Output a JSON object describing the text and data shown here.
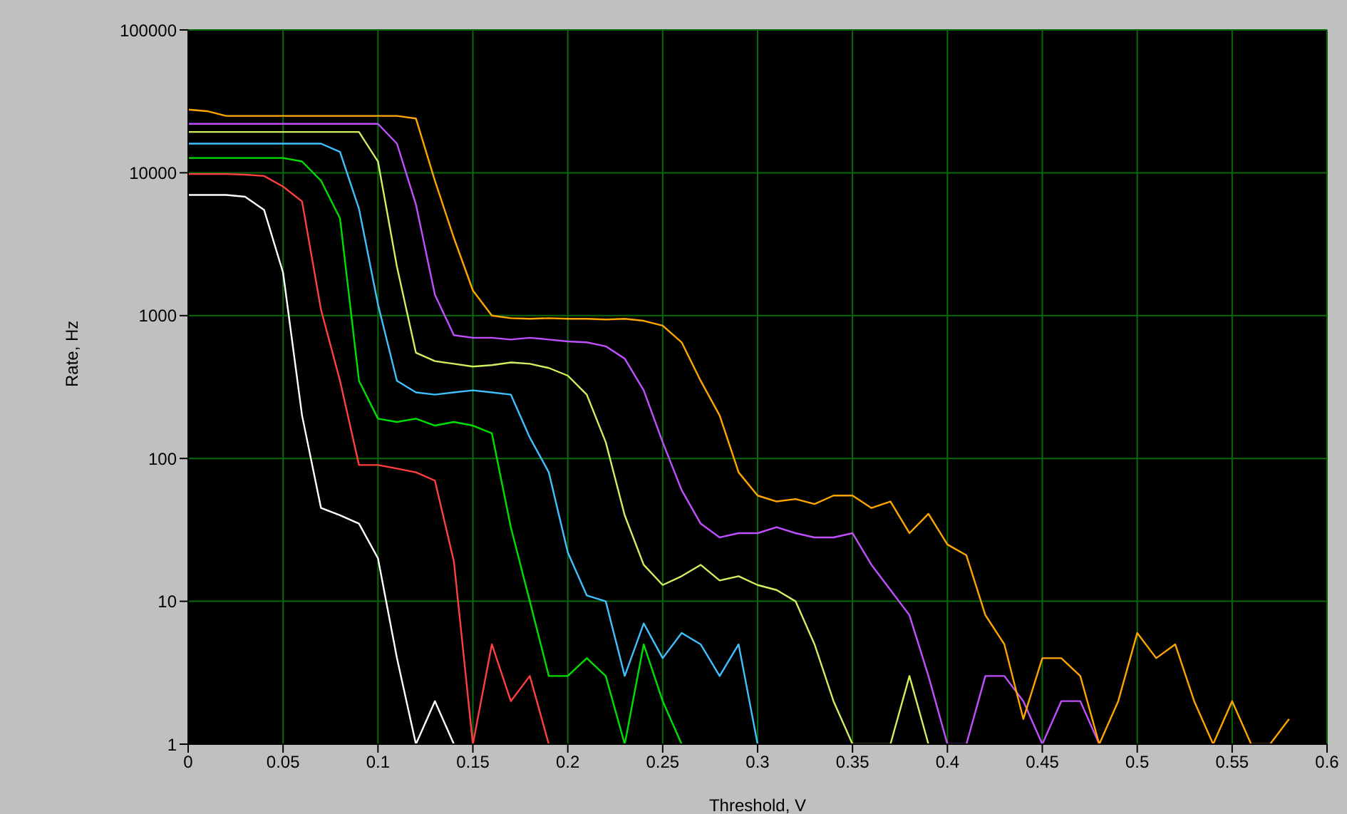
{
  "chart_data": {
    "type": "line",
    "xlabel": "Threshold, V",
    "ylabel": "Rate, Hz",
    "log": "y",
    "grid": true,
    "legend": false,
    "marker": "none",
    "line_style": "solid",
    "xlim": [
      0,
      0.6
    ],
    "xticks": [
      0,
      0.05,
      0.1,
      0.15,
      0.2,
      0.25,
      0.3,
      0.35,
      0.4,
      0.45,
      0.5,
      0.55,
      0.6
    ],
    "ylim": [
      1,
      100000
    ],
    "yticks": [
      1,
      10,
      100,
      1000,
      10000,
      100000
    ],
    "x": [
      0,
      0.01,
      0.02,
      0.03,
      0.04,
      0.05,
      0.06,
      0.07,
      0.08,
      0.09,
      0.1,
      0.11,
      0.12,
      0.13,
      0.14,
      0.15,
      0.16,
      0.17,
      0.18,
      0.19,
      0.2,
      0.21,
      0.22,
      0.23,
      0.24,
      0.25,
      0.26,
      0.27,
      0.28,
      0.29,
      0.3,
      0.31,
      0.32,
      0.33,
      0.34,
      0.35,
      0.36,
      0.37,
      0.38,
      0.39,
      0.4,
      0.41,
      0.42,
      0.43,
      0.44,
      0.45,
      0.46,
      0.47,
      0.48,
      0.49,
      0.5,
      0.51,
      0.52,
      0.53,
      0.54,
      0.55,
      0.56,
      0.57,
      0.58
    ],
    "series": [
      {
        "color": "#ffffff",
        "values": [
          7000,
          7000,
          7000,
          6800,
          5500,
          2000,
          200,
          45,
          40,
          35,
          20,
          4,
          1,
          2,
          1,
          null,
          null,
          null,
          null,
          null,
          null,
          null,
          null,
          null,
          null,
          null,
          null,
          null,
          null,
          null,
          null,
          null,
          null,
          null,
          null,
          null,
          null,
          null,
          null,
          null,
          null,
          null,
          null,
          null,
          null,
          null,
          null,
          null,
          null,
          null,
          null,
          null,
          null,
          null,
          null,
          null,
          null,
          null,
          null
        ]
      },
      {
        "color": "#ff4040",
        "values": [
          9800,
          9800,
          9800,
          9700,
          9500,
          8000,
          6300,
          1100,
          350,
          90,
          90,
          85,
          80,
          70,
          19,
          1,
          5,
          2,
          3,
          1,
          null,
          null,
          null,
          null,
          null,
          null,
          null,
          null,
          null,
          null,
          null,
          null,
          null,
          null,
          null,
          null,
          null,
          null,
          null,
          null,
          null,
          null,
          null,
          null,
          null,
          null,
          null,
          null,
          null,
          null,
          null,
          null,
          null,
          null,
          null,
          null,
          null,
          null,
          null
        ]
      },
      {
        "color": "#00e000",
        "values": [
          12700,
          12700,
          12700,
          12700,
          12700,
          12700,
          12000,
          8800,
          4800,
          350,
          190,
          180,
          190,
          170,
          180,
          170,
          150,
          33,
          10,
          3,
          3,
          4,
          3,
          1,
          5,
          2,
          1,
          null,
          null,
          null,
          null,
          null,
          null,
          null,
          null,
          null,
          null,
          null,
          null,
          null,
          null,
          null,
          null,
          null,
          null,
          null,
          null,
          null,
          null,
          null,
          null,
          null,
          null,
          null,
          null,
          null,
          null,
          null,
          null
        ]
      },
      {
        "color": "#40c0ff",
        "values": [
          16000,
          16000,
          16000,
          16000,
          16000,
          16000,
          16000,
          16000,
          14000,
          5600,
          1200,
          350,
          290,
          280,
          290,
          300,
          290,
          280,
          140,
          80,
          22,
          11,
          10,
          3,
          7,
          4,
          6,
          5,
          3,
          5,
          1,
          null,
          null,
          null,
          null,
          null,
          null,
          null,
          null,
          null,
          null,
          null,
          null,
          null,
          null,
          null,
          null,
          null,
          null,
          null,
          null,
          null,
          null,
          null,
          null,
          null,
          null,
          null,
          null
        ]
      },
      {
        "color": "#d0f060",
        "values": [
          19300,
          19300,
          19300,
          19300,
          19300,
          19300,
          19300,
          19300,
          19300,
          19300,
          12000,
          2200,
          550,
          480,
          460,
          440,
          450,
          470,
          460,
          430,
          380,
          280,
          130,
          40,
          18,
          13,
          15,
          18,
          14,
          15,
          13,
          12,
          10,
          5,
          2,
          1,
          1,
          1,
          3,
          1,
          null,
          null,
          null,
          null,
          null,
          null,
          null,
          null,
          null,
          null,
          null,
          null,
          null,
          null,
          null,
          null,
          null,
          null,
          null
        ]
      },
      {
        "color": "#c050ff",
        "values": [
          22000,
          22000,
          22000,
          22000,
          22000,
          22000,
          22000,
          22000,
          22000,
          22000,
          22000,
          16000,
          6000,
          1400,
          730,
          700,
          700,
          680,
          700,
          680,
          660,
          650,
          610,
          500,
          300,
          130,
          60,
          35,
          28,
          30,
          30,
          33,
          30,
          28,
          28,
          30,
          18,
          12,
          8,
          3,
          1,
          1,
          3,
          3,
          2,
          1,
          2,
          2,
          1,
          null,
          null,
          null,
          null,
          null,
          null,
          null,
          null,
          null,
          null
        ]
      },
      {
        "color": "#ffa500",
        "values": [
          27700,
          27000,
          25000,
          25000,
          25000,
          25000,
          25000,
          25000,
          25000,
          25000,
          25000,
          25000,
          24000,
          8800,
          3500,
          1500,
          1000,
          960,
          950,
          960,
          950,
          950,
          940,
          950,
          920,
          850,
          650,
          350,
          200,
          80,
          55,
          50,
          52,
          48,
          55,
          55,
          45,
          50,
          30,
          41,
          25,
          21,
          8,
          5,
          1.5,
          4,
          4,
          3,
          1,
          2,
          6,
          4,
          5,
          2,
          1,
          2,
          1,
          1,
          1.5
        ]
      }
    ]
  }
}
